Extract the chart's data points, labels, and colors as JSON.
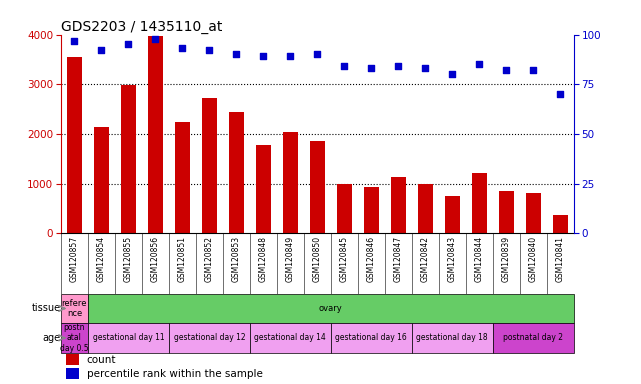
{
  "title": "GDS2203 / 1435110_at",
  "samples": [
    "GSM120857",
    "GSM120854",
    "GSM120855",
    "GSM120856",
    "GSM120851",
    "GSM120852",
    "GSM120853",
    "GSM120848",
    "GSM120849",
    "GSM120850",
    "GSM120845",
    "GSM120846",
    "GSM120847",
    "GSM120842",
    "GSM120843",
    "GSM120844",
    "GSM120839",
    "GSM120840",
    "GSM120841"
  ],
  "counts": [
    3550,
    2130,
    2980,
    3980,
    2230,
    2720,
    2450,
    1780,
    2040,
    1850,
    1000,
    940,
    1140,
    1000,
    750,
    1220,
    850,
    820,
    370
  ],
  "percentiles": [
    97,
    92,
    95,
    98,
    93,
    92,
    90,
    89,
    89,
    90,
    84,
    83,
    84,
    83,
    80,
    85,
    82,
    82,
    70
  ],
  "bar_color": "#cc0000",
  "dot_color": "#0000cc",
  "ylim_left": [
    0,
    4000
  ],
  "ylim_right": [
    0,
    100
  ],
  "yticks_left": [
    0,
    1000,
    2000,
    3000,
    4000
  ],
  "yticks_right": [
    0,
    25,
    50,
    75,
    100
  ],
  "bg_color": "#ffffff",
  "tick_area_color": "#d8d8d8",
  "tissue_segments": [
    {
      "text": "refere\nnce",
      "color": "#ff99cc",
      "span": 1
    },
    {
      "text": "ovary",
      "color": "#66cc66",
      "span": 18
    }
  ],
  "age_segments": [
    {
      "text": "postn\natal\nday 0.5",
      "color": "#cc44cc",
      "span": 1
    },
    {
      "text": "gestational day 11",
      "color": "#f0a0f0",
      "span": 3
    },
    {
      "text": "gestational day 12",
      "color": "#f0a0f0",
      "span": 3
    },
    {
      "text": "gestational day 14",
      "color": "#f0a0f0",
      "span": 3
    },
    {
      "text": "gestational day 16",
      "color": "#f0a0f0",
      "span": 3
    },
    {
      "text": "gestational day 18",
      "color": "#f0a0f0",
      "span": 3
    },
    {
      "text": "postnatal day 2",
      "color": "#cc44cc",
      "span": 3
    }
  ]
}
